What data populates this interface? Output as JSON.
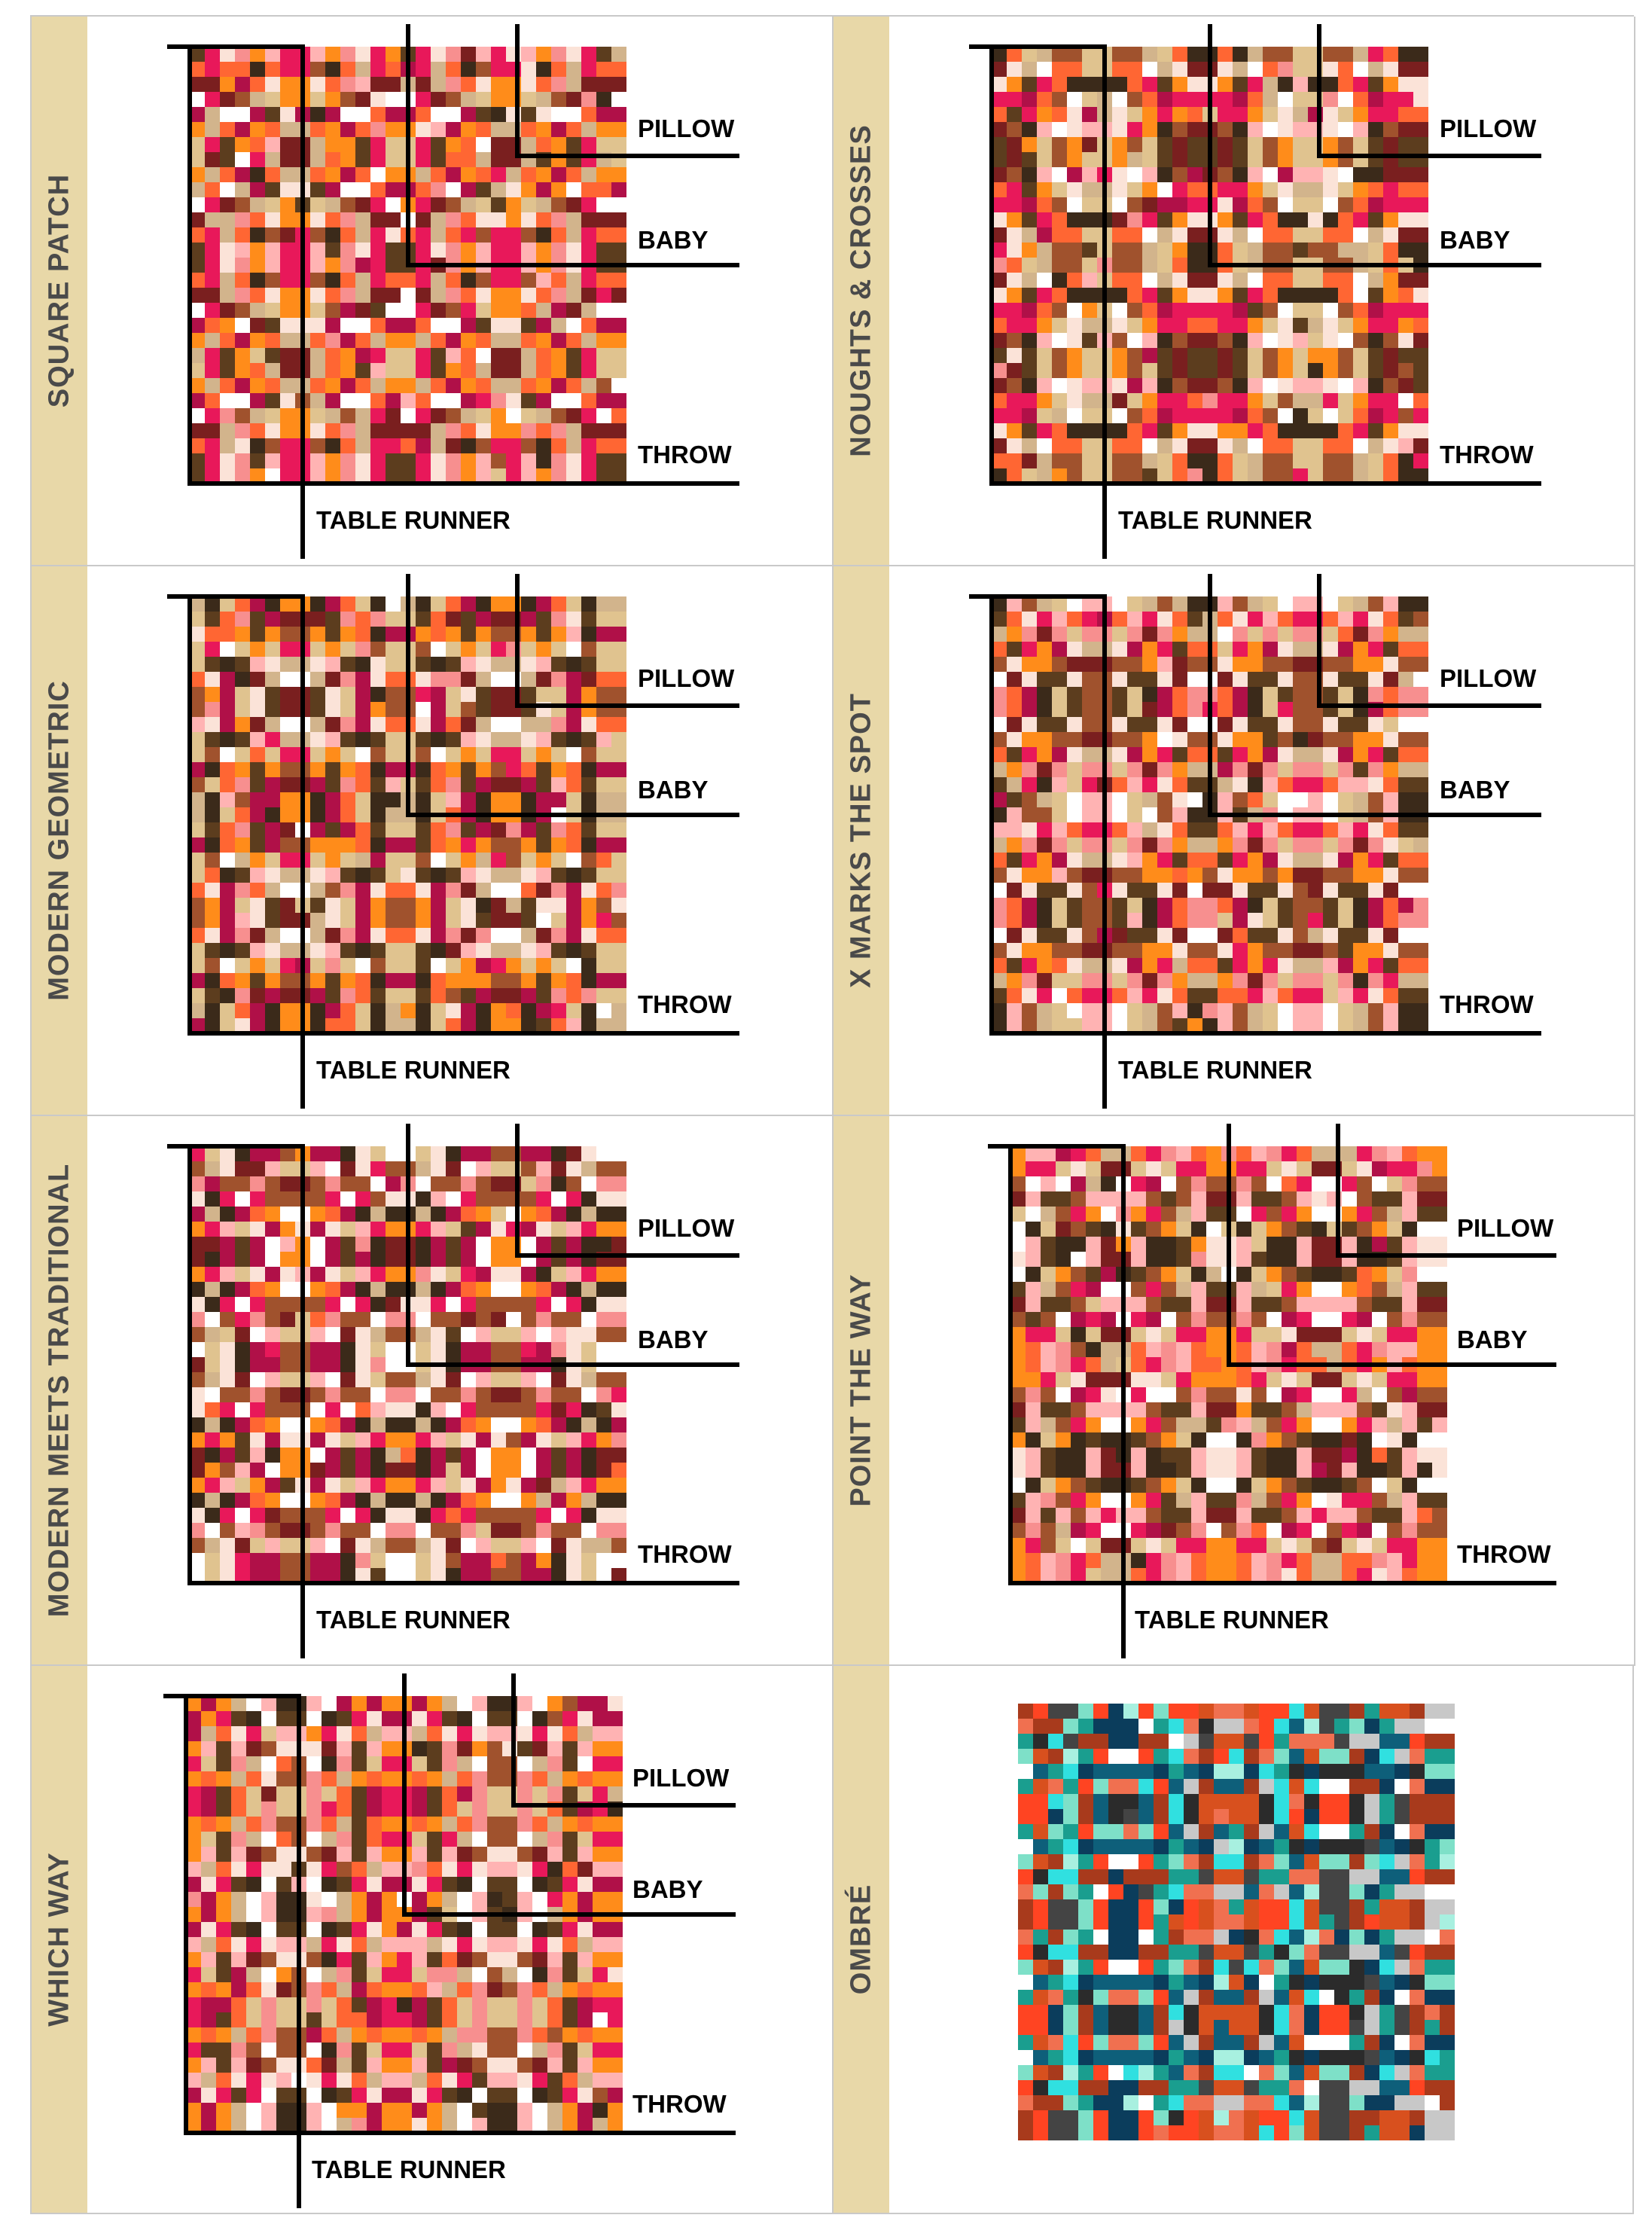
{
  "colors": {
    "band": "#e8d8a8",
    "band_text": "#4a4a4a",
    "guide_line": "#000000",
    "warm_palette": [
      "#ffffff",
      "#fbe3d8",
      "#ffb3b3",
      "#f78f8f",
      "#e8185a",
      "#b01048",
      "#7a1f1f",
      "#a0522d",
      "#d2b48c",
      "#e0c38f",
      "#ff8c1a",
      "#ff6633",
      "#5c3d1e",
      "#3b2a1a"
    ],
    "ombre_palette": [
      "#ffffff",
      "#a8f0e0",
      "#7ee0c8",
      "#30e0e0",
      "#1a9e8f",
      "#0e5f7a",
      "#0b3d5c",
      "#2b2b2b",
      "#444444",
      "#ff4422",
      "#d8501e",
      "#a83a1c",
      "#f07050",
      "#c8c8c8"
    ]
  },
  "labels": {
    "pillow": "PILLOW",
    "baby": "BABY",
    "throw": "THROW",
    "runner": "TABLE RUNNER"
  },
  "panels": [
    {
      "title": "SQUARE PATCH",
      "kind": "warm",
      "seed": 11
    },
    {
      "title": "NOUGHTS & CROSSES",
      "kind": "warm",
      "seed": 23
    },
    {
      "title": "MODERN GEOMETRIC",
      "kind": "warm",
      "seed": 37
    },
    {
      "title": "X MARKS THE SPOT",
      "kind": "warm",
      "seed": 41
    },
    {
      "title": "MODERN MEETS TRADITIONAL",
      "kind": "warm",
      "seed": 53
    },
    {
      "title": "POINT THE WAY",
      "kind": "warm",
      "seed": 67
    },
    {
      "title": "WHICH WAY",
      "kind": "warm",
      "seed": 79
    },
    {
      "title": "OMBRÉ",
      "kind": "ombre",
      "seed": 97
    }
  ]
}
